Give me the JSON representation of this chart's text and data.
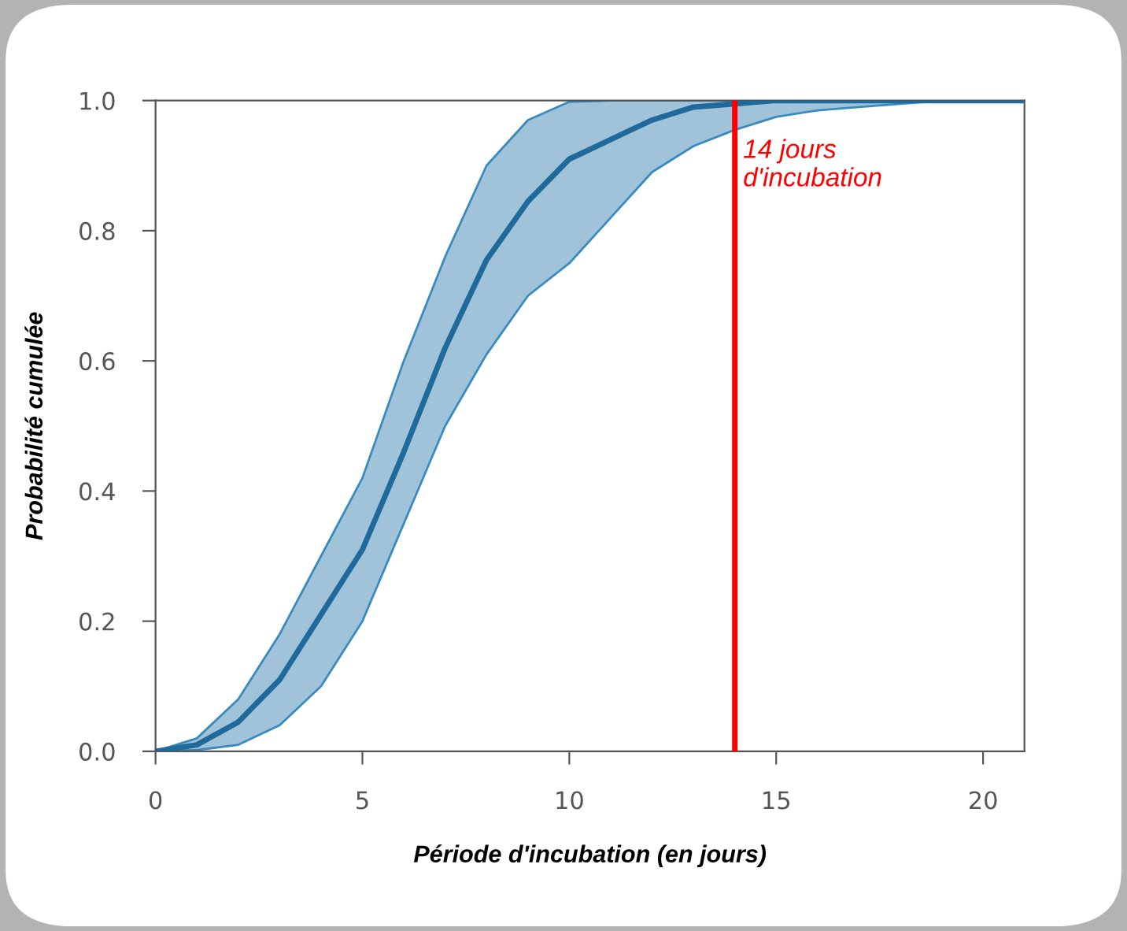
{
  "chart_data": {
    "type": "line",
    "xlabel": "Période d'incubation (en jours)",
    "ylabel": "Probabilité cumulée",
    "x": [
      0,
      1,
      2,
      3,
      4,
      5,
      6,
      7,
      8,
      9,
      10,
      11,
      12,
      13,
      14,
      15,
      16,
      17,
      18,
      19,
      21
    ],
    "series": [
      {
        "color": "#1f6a9a",
        "values": [
          0,
          0.01,
          0.045,
          0.11,
          0.21,
          0.31,
          0.46,
          0.62,
          0.755,
          0.845,
          0.91,
          0.94,
          0.97,
          0.99,
          0.995,
          1,
          1,
          1,
          1,
          1,
          1
        ],
        "lower": [
          0,
          0.002,
          0.01,
          0.04,
          0.1,
          0.2,
          0.35,
          0.5,
          0.61,
          0.7,
          0.75,
          0.82,
          0.89,
          0.93,
          0.955,
          0.975,
          0.985,
          0.99,
          0.995,
          1,
          1
        ],
        "upper": [
          0,
          0.02,
          0.08,
          0.18,
          0.3,
          0.42,
          0.6,
          0.76,
          0.9,
          0.97,
          0.998,
          1,
          1,
          1,
          1,
          1,
          1,
          1,
          1,
          1,
          1
        ]
      }
    ],
    "xlim": [
      0,
      21
    ],
    "xticks": [
      0,
      5,
      10,
      15,
      20
    ],
    "ylim": [
      0,
      1
    ],
    "yticks": [
      {
        "value": 0,
        "label": "0.0"
      },
      {
        "value": 0.2,
        "label": "0.2"
      },
      {
        "value": 0.4,
        "label": "0.4"
      },
      {
        "value": 0.6,
        "label": "0.6"
      },
      {
        "value": 0.8,
        "label": "0.8"
      },
      {
        "value": 1,
        "label": "1.0"
      }
    ],
    "ref_lines": [
      {
        "axis": "x",
        "value": 14,
        "label": "14 jours\nd'incubation",
        "color": "#ff0000"
      }
    ],
    "grid": false,
    "legend": false,
    "marker": "none",
    "line_style": "solid"
  }
}
